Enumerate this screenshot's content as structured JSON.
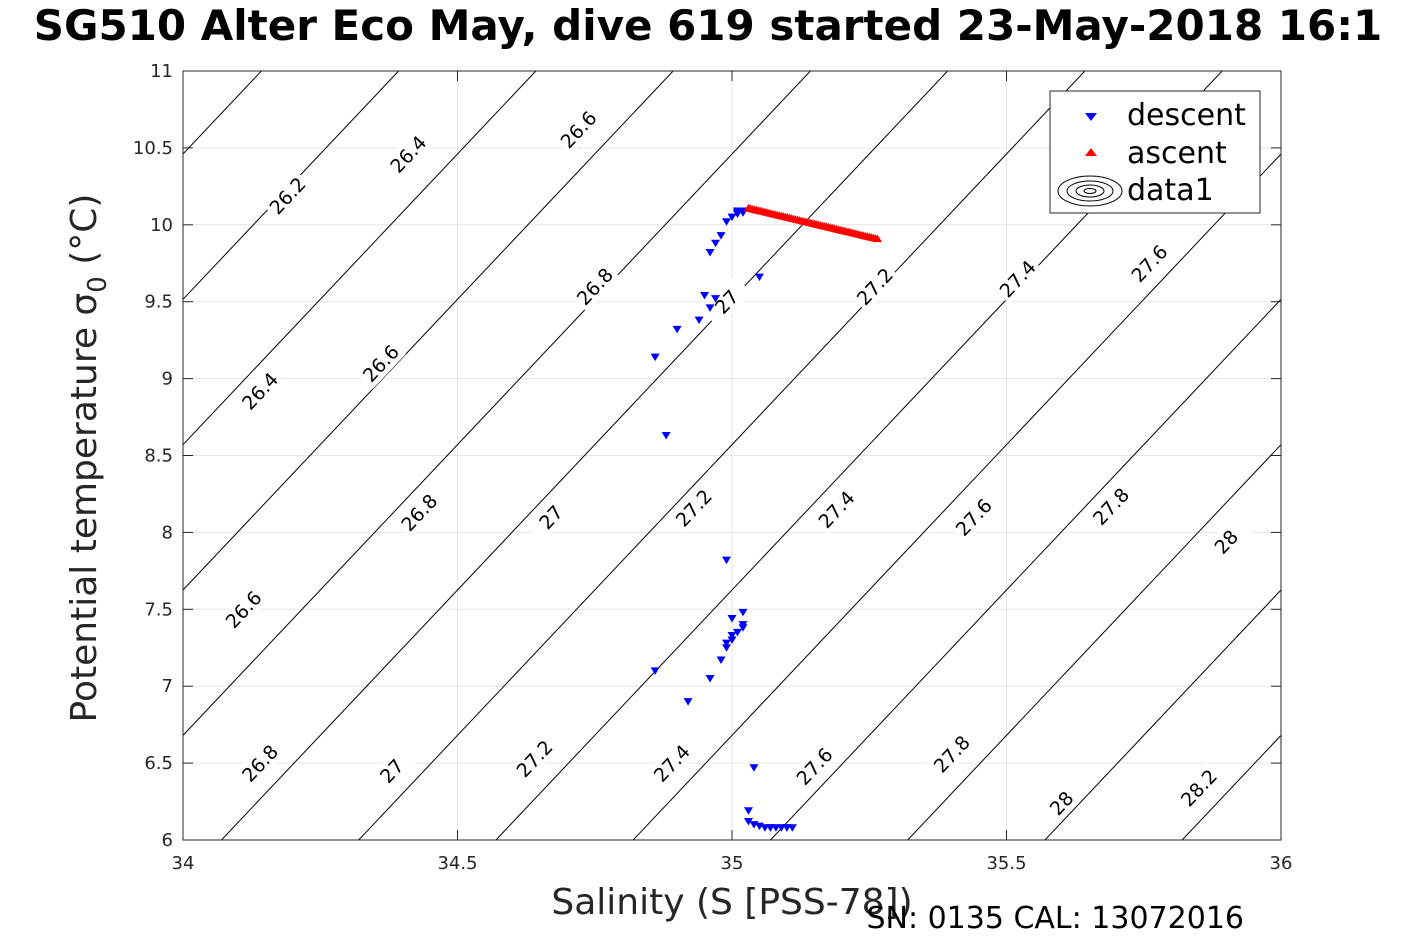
{
  "chart_data": {
    "type": "scatter",
    "title": "SG510 Alter Eco May, dive 619 started 23-May-2018 16:1",
    "xlabel": "Salinity (S [PSS-78])",
    "ylabel": "Potential temperature σ",
    "ylabel_sub": "0",
    "ylabel_unit": " (°C)",
    "xlim": [
      34,
      36
    ],
    "ylim": [
      6,
      11
    ],
    "xticks": [
      34,
      34.5,
      35,
      35.5,
      36
    ],
    "xtick_labels": [
      "34",
      "34.5",
      "35",
      "35.5",
      "36"
    ],
    "yticks": [
      6,
      6.5,
      7,
      7.5,
      8,
      8.5,
      9,
      9.5,
      10,
      10.5,
      11
    ],
    "ytick_labels": [
      "6",
      "6.5",
      "7",
      "7.5",
      "8",
      "8.5",
      "9",
      "9.5",
      "10",
      "10.5",
      "11"
    ],
    "grid": true,
    "legend_position": "top-right",
    "legend": [
      "descent",
      "ascent",
      "data1"
    ],
    "series": [
      {
        "name": "descent",
        "marker": "triangle-down",
        "color": "#0000ff",
        "x": [
          34.86,
          34.92,
          34.96,
          34.98,
          34.99,
          34.99,
          35.0,
          35.0,
          35.01,
          35.02,
          35.04,
          35.03,
          35.02,
          35.0,
          35.02,
          34.88,
          34.96,
          34.97,
          34.98,
          34.99,
          35.0,
          35.01,
          35.01,
          35.01,
          35.02,
          35.02,
          35.02,
          35.02,
          35.02,
          35.02,
          34.99,
          35.03,
          35.04,
          35.05,
          35.06,
          35.07,
          35.07,
          35.08,
          35.09,
          35.1,
          35.1,
          35.11,
          35.05,
          34.96,
          34.94,
          34.9
        ],
        "y": [
          7.1,
          6.9,
          7.05,
          7.17,
          7.25,
          7.28,
          7.3,
          7.33,
          7.35,
          7.38,
          6.47,
          6.19,
          7.4,
          7.44,
          7.48,
          8.63,
          9.82,
          9.88,
          9.93,
          10.02,
          10.05,
          10.07,
          10.08,
          10.09,
          10.09,
          10.09,
          10.08,
          10.08,
          10.08,
          10.08,
          7.82,
          6.12,
          6.1,
          6.09,
          6.08,
          6.08,
          6.08,
          6.08,
          6.08,
          6.08,
          6.08,
          6.08,
          9.66,
          9.46,
          9.38,
          9.32
        ],
        "extra_x": [
          34.86,
          34.95,
          34.97
        ],
        "extra_y": [
          9.14,
          9.54,
          9.52
        ]
      },
      {
        "name": "ascent",
        "marker": "triangle-up",
        "color": "#ff0000",
        "x_start": 35.03,
        "y_start": 10.11,
        "x_end": 35.265,
        "y_end": 9.91,
        "count": 64
      }
    ],
    "contour_labels": [
      "26.2",
      "26.4",
      "26.6",
      "26.8",
      "27",
      "27.2",
      "27.4",
      "27.6",
      "27.8",
      "28",
      "28.2"
    ],
    "contour_levels": [
      25.8,
      26.0,
      26.2,
      26.4,
      26.6,
      26.8,
      27.0,
      27.2,
      27.4,
      27.6,
      27.8,
      28.0,
      28.2,
      28.4
    ],
    "contour_label_marks": [
      {
        "level": "26.2",
        "s": 34.19,
        "t": 10.19
      },
      {
        "level": "26.4",
        "s": 34.41,
        "t": 10.46
      },
      {
        "level": "26.6",
        "s": 34.72,
        "t": 10.62
      },
      {
        "level": "26.4",
        "s": 34.14,
        "t": 8.92
      },
      {
        "level": "26.6",
        "s": 34.36,
        "t": 9.1
      },
      {
        "level": "26.8",
        "s": 34.75,
        "t": 9.6
      },
      {
        "level": "27",
        "s": 34.99,
        "t": 9.5
      },
      {
        "level": "27.2",
        "s": 35.26,
        "t": 9.6
      },
      {
        "level": "27.4",
        "s": 35.52,
        "t": 9.65
      },
      {
        "level": "27.6",
        "s": 35.76,
        "t": 9.75
      },
      {
        "level": "26.6",
        "s": 34.11,
        "t": 7.5
      },
      {
        "level": "26.8",
        "s": 34.43,
        "t": 8.13
      },
      {
        "level": "27",
        "s": 34.67,
        "t": 8.1
      },
      {
        "level": "27.2",
        "s": 34.93,
        "t": 8.16
      },
      {
        "level": "27.4",
        "s": 35.19,
        "t": 8.15
      },
      {
        "level": "27.6",
        "s": 35.44,
        "t": 8.1
      },
      {
        "level": "27.8",
        "s": 35.69,
        "t": 8.17
      },
      {
        "level": "28",
        "s": 35.9,
        "t": 7.94
      },
      {
        "level": "26.8",
        "s": 34.14,
        "t": 6.5
      },
      {
        "level": "27",
        "s": 34.38,
        "t": 6.45
      },
      {
        "level": "27.2",
        "s": 34.64,
        "t": 6.53
      },
      {
        "level": "27.4",
        "s": 34.89,
        "t": 6.5
      },
      {
        "level": "27.6",
        "s": 35.15,
        "t": 6.48
      },
      {
        "level": "27.8",
        "s": 35.4,
        "t": 6.56
      },
      {
        "level": "28",
        "s": 35.6,
        "t": 6.24
      },
      {
        "level": "28.2",
        "s": 35.85,
        "t": 6.34
      }
    ]
  },
  "footer": "SN: 0135  CAL: 13072016",
  "colors": {
    "descent": "#0000ff",
    "ascent": "#ff0000",
    "contour": "#000000",
    "grid": "#e6e6e6",
    "axis": "#262626"
  }
}
